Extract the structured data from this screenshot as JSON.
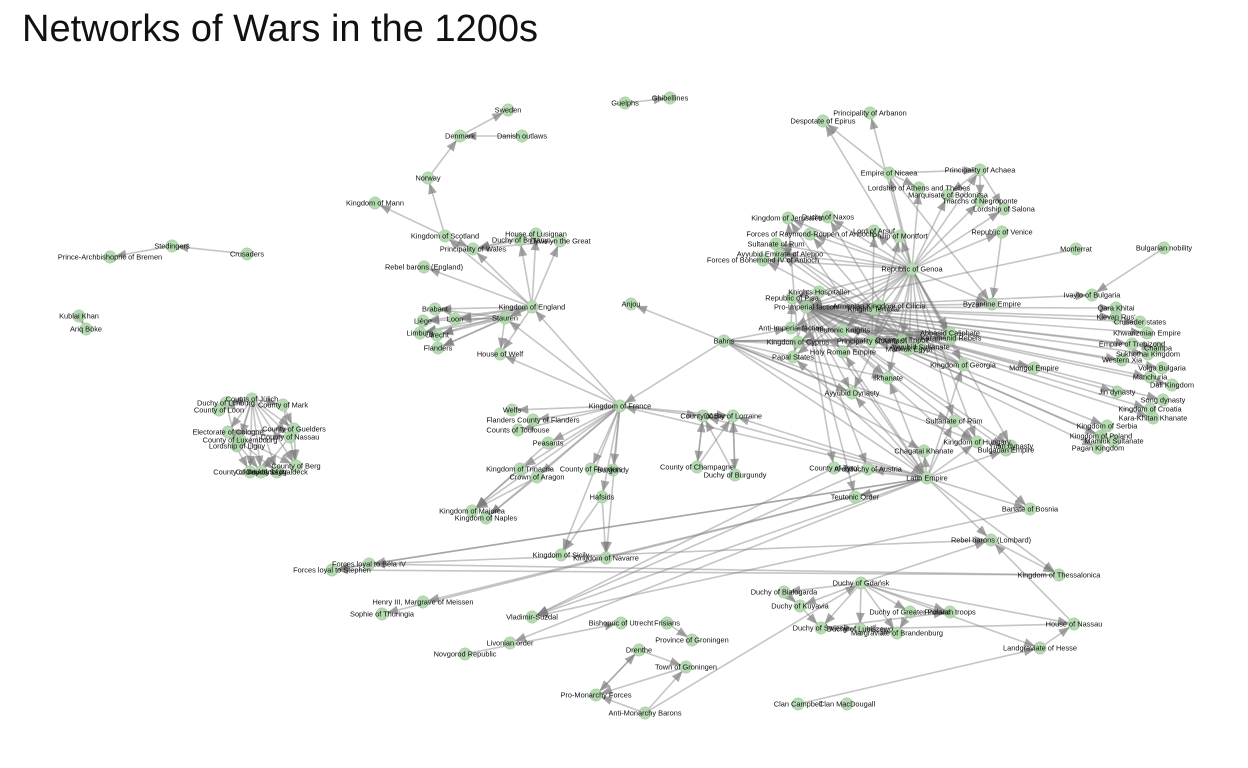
{
  "title": "Networks of Wars in the 1200s",
  "colors": {
    "node": "#a9d3a4",
    "edge": "#7f7f7f",
    "text": "#111111"
  },
  "nodes": [
    "Guelphs",
    "Ghibellines",
    "Sweden",
    "Denmark",
    "Danish outlaws",
    "Norway",
    "Kingdom of Mann",
    "Stedingers",
    "Prince-Archbishopric of Bremen",
    "Crusaders",
    "Kublai Khan",
    "Ariq Böke",
    "Kingdom of Scotland",
    "House of Lusignan",
    "Duchy of Brittany",
    "Llywelyn the Great",
    "Principality of Wales",
    "Rebel barons (England)",
    "Kingdom of England",
    "Brabant",
    "Liège",
    "Loon",
    "Limburg",
    "Utrecht",
    "Stauren",
    "Flanders",
    "House of Welf",
    "Anjou",
    "Bahris",
    "Kingdom of France",
    "Welfs",
    "Flanders County of Flanders",
    "Counts of Toulouse",
    "Peasants",
    "Kingdom of Trinacria",
    "Crown of Aragon",
    "County of Flanders",
    "Burgundy",
    "Hafsids",
    "Kingdom of Majorca",
    "Kingdom of Naples",
    "Kingdom of Sicily",
    "Kingdom of Navarre",
    "Duchy of Lorraine",
    "County of Bar",
    "County of Champagne",
    "Duchy of Burgundy",
    "Counts of Jülich",
    "Duchy of Limburg",
    "County of Mark",
    "County of Loon",
    "Electorate of Cologne",
    "County of Guelders",
    "County of Nassau",
    "County of Luxembourg",
    "Lordship of Ligny",
    "County of Berg",
    "County of Sayn",
    "County of Tecklenburg",
    "County of Waldeck",
    "Despotate of Epirus",
    "Principality of Arbanon",
    "Empire of Nicaea",
    "Principality of Achaea",
    "Lordship of Athens and Thebes",
    "Marquisate of Bodonitsa",
    "Triarchs of Negroponte",
    "Lordship of Salona",
    "Republic of Venice",
    "Republic of Genoa",
    "Republic of Pisa",
    "Kingdom of Jerusalem",
    "Duchy of Naxos",
    "Lord of Arsuf",
    "Philip of Montfort",
    "Forces of Raymond-Roupen of Antioch",
    "Sultanate of Rum",
    "Ayyubid Emirate of Aleppo",
    "Forces of Bohemond IV of Antioch",
    "Monferrat",
    "Bulgarian nobility",
    "Byzantine Empire",
    "Ivaylo of Bulgaria",
    "Qara Khitai",
    "Kievan Rus'",
    "Crusader states",
    "Khwarizmian Empire",
    "Empire of Trebizond",
    "Champa",
    "Sukhothai Kingdom",
    "Volga Bulgaria",
    "Western Xia",
    "Manchuria",
    "Dali Kingdom",
    "Jin dynasty",
    "Song dynasty",
    "Kingdom of Croatia",
    "Kara-Khitan Khanate",
    "Kingdom of Serbia",
    "Kingdom of Poland",
    "Mamluk Sultanate",
    "Pagan Kingdom",
    "Mongol Empire",
    "Knights Hospitaller",
    "Knights Templar",
    "Armenian Kingdom of Cilicia",
    "Pro-Imperial faction",
    "Anti-Imperial faction",
    "Teutonic Knights",
    "Kingdom of Cyprus",
    "Principality of Antioch",
    "County of Tripoli",
    "Abbasid Caliphate",
    "Karamanid Rebels",
    "Mamluk Egypt",
    "Ayyubid Sultanate",
    "Holy Roman Empire",
    "Papal States",
    "Kingdom of Georgia",
    "Ilkhanate",
    "Ayyubid Dynasty",
    "Sultanate of Rûm",
    "Kingdom of Hungary",
    "Yuan dynasty",
    "Bulgarian Empire",
    "Chagatai Khanate",
    "Latin Empire",
    "Teutonic Order",
    "County of Tyrol",
    "Archduchy of Austria",
    "Banate of Bosnia",
    "Rebel barons (Lombard)",
    "Kingdom of Thessalonica",
    "Forces loyal to Béla IV",
    "Forces loyal to Stephen",
    "Henry III, Margrave of Meissen",
    "Sophie of Thuringia",
    "Vladimir-Suzdal",
    "Livonian order",
    "Novgorod Republic",
    "Bishopric of Utrecht",
    "Frisians",
    "Province of Groningen",
    "Drenthe",
    "Town of Groningen",
    "Pro-Monarchy Forces",
    "Anti-Monarchy Barons",
    "Duchy of Gdańsk",
    "Duchy of Białogarda",
    "Duchy of Kuyavia",
    "Duchy of Greater Poland",
    "Prussian troops",
    "Duchy of Świecie",
    "Duchy of Lubiszewo",
    "Margraviate of Brandenburg",
    "House of Nassau",
    "Landgraviate of Hesse",
    "Clan Campbell",
    "Clan MacDougall"
  ]
}
